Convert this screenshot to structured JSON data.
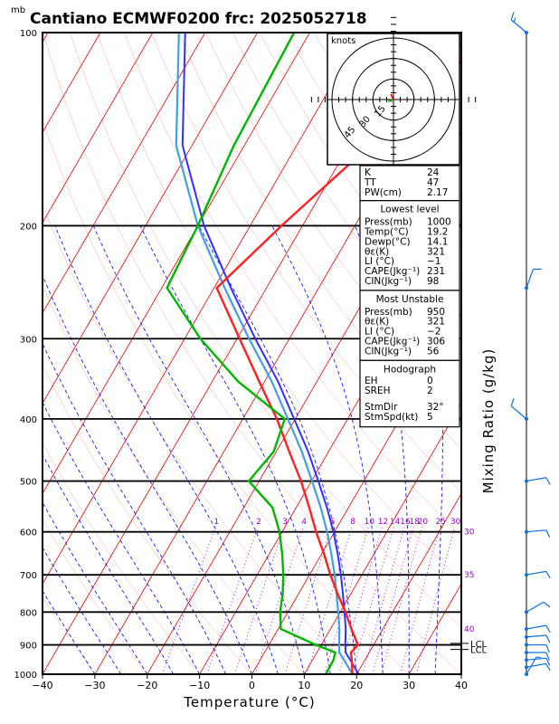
{
  "header": {
    "title": "Cantiano ECMWF0200  frc: 2025052718",
    "unit_label": "mb"
  },
  "chart_data": {
    "type": "skew-t log-p sounding",
    "xlabel": "Temperature (°C)",
    "ylabel_right": "Mixing Ratio  (g/kg)",
    "x_ticks": [
      "−40",
      "−30",
      "−20",
      "−10",
      "0",
      "10",
      "20",
      "30",
      "40"
    ],
    "x_range": [
      -40,
      40
    ],
    "pressure_range": [
      100,
      1000
    ],
    "pressure_labels": [
      "100",
      "200",
      "300",
      "400",
      "500",
      "600",
      "700",
      "800",
      "900",
      "1000"
    ],
    "isotherm_spacing_degC": 10,
    "mixing_ratio_labels": [
      "1",
      "2",
      "3",
      "4",
      "6",
      "8",
      "10",
      "12",
      "14",
      "16",
      "18",
      "20",
      "25",
      "30"
    ],
    "theta_e_labels": [
      "30",
      "35",
      "40"
    ],
    "lcl_labels": [
      "LCL",
      "LCL"
    ],
    "lcl_pressures_mb": [
      895,
      915
    ],
    "temperature_profile": [
      {
        "p": 1000,
        "t": 19.2
      },
      {
        "p": 950,
        "t": 17.5
      },
      {
        "p": 925,
        "t": 16.5
      },
      {
        "p": 900,
        "t": 17.0
      },
      {
        "p": 850,
        "t": 14.0
      },
      {
        "p": 800,
        "t": 11.0
      },
      {
        "p": 750,
        "t": 7.5
      },
      {
        "p": 700,
        "t": 4.0
      },
      {
        "p": 650,
        "t": 0.5
      },
      {
        "p": 600,
        "t": -3.5
      },
      {
        "p": 550,
        "t": -7.5
      },
      {
        "p": 500,
        "t": -12.0
      },
      {
        "p": 450,
        "t": -17.5
      },
      {
        "p": 400,
        "t": -23.5
      },
      {
        "p": 350,
        "t": -31.0
      },
      {
        "p": 300,
        "t": -39.5
      },
      {
        "p": 250,
        "t": -49.5
      },
      {
        "p": 200,
        "t": -44.0
      },
      {
        "p": 150,
        "t": -36.0
      },
      {
        "p": 100,
        "t": -25.0
      }
    ],
    "dewpoint_profile": [
      {
        "p": 1000,
        "t": 14.1
      },
      {
        "p": 950,
        "t": 14.0
      },
      {
        "p": 925,
        "t": 13.5
      },
      {
        "p": 900,
        "t": 9.0
      },
      {
        "p": 850,
        "t": 0.5
      },
      {
        "p": 800,
        "t": -1.5
      },
      {
        "p": 750,
        "t": -3.0
      },
      {
        "p": 700,
        "t": -5.0
      },
      {
        "p": 650,
        "t": -7.5
      },
      {
        "p": 600,
        "t": -10.5
      },
      {
        "p": 550,
        "t": -14.5
      },
      {
        "p": 500,
        "t": -22.0
      },
      {
        "p": 450,
        "t": -20.5
      },
      {
        "p": 400,
        "t": -22.0
      },
      {
        "p": 350,
        "t": -35.0
      },
      {
        "p": 300,
        "t": -47.0
      },
      {
        "p": 250,
        "t": -59.0
      },
      {
        "p": 200,
        "t": -60.0
      },
      {
        "p": 150,
        "t": -62.0
      },
      {
        "p": 100,
        "t": -63.0
      }
    ],
    "parcel_profile": [
      {
        "p": 1000,
        "t": 19.2
      },
      {
        "p": 950,
        "t": 16.0
      },
      {
        "p": 925,
        "t": 14.3
      },
      {
        "p": 900,
        "t": 13.4
      },
      {
        "p": 850,
        "t": 11.7
      },
      {
        "p": 800,
        "t": 9.6
      },
      {
        "p": 750,
        "t": 7.3
      },
      {
        "p": 700,
        "t": 4.8
      },
      {
        "p": 650,
        "t": 1.9
      },
      {
        "p": 600,
        "t": -1.4
      },
      {
        "p": 550,
        "t": -5.3
      },
      {
        "p": 500,
        "t": -9.9
      },
      {
        "p": 450,
        "t": -15.1
      },
      {
        "p": 400,
        "t": -21.4
      },
      {
        "p": 350,
        "t": -28.6
      },
      {
        "p": 300,
        "t": -37.7
      },
      {
        "p": 250,
        "t": -48.0
      },
      {
        "p": 200,
        "t": -60.0
      },
      {
        "p": 150,
        "t": -73.0
      },
      {
        "p": 100,
        "t": -85.0
      }
    ],
    "wind_barbs": [
      {
        "p": 1000,
        "dir": 30,
        "spd": 5
      },
      {
        "p": 975,
        "dir": 80,
        "spd": 10
      },
      {
        "p": 950,
        "dir": 85,
        "spd": 10
      },
      {
        "p": 925,
        "dir": 90,
        "spd": 10
      },
      {
        "p": 900,
        "dir": 90,
        "spd": 10
      },
      {
        "p": 875,
        "dir": 85,
        "spd": 10
      },
      {
        "p": 850,
        "dir": 80,
        "spd": 10
      },
      {
        "p": 800,
        "dir": 60,
        "spd": 10
      },
      {
        "p": 700,
        "dir": 80,
        "spd": 10
      },
      {
        "p": 600,
        "dir": 85,
        "spd": 10
      },
      {
        "p": 500,
        "dir": 80,
        "spd": 10
      },
      {
        "p": 400,
        "dir": 310,
        "spd": 10
      },
      {
        "p": 250,
        "dir": 20,
        "spd": 10
      },
      {
        "p": 100,
        "dir": 310,
        "spd": 15
      }
    ],
    "hodograph": {
      "units": "knots",
      "ring_labels": [
        "15",
        "30",
        "45"
      ],
      "ring_values": [
        15,
        30,
        45
      ]
    }
  },
  "indices": {
    "top": [
      {
        "label": "K",
        "value": "24"
      },
      {
        "label": "TT",
        "value": "47"
      },
      {
        "label": "PW(cm)",
        "value": "2.17"
      }
    ],
    "lowest_title": "Lowest level",
    "lowest": [
      {
        "label": "Press(mb)",
        "value": "1000"
      },
      {
        "label": "Temp(°C)",
        "value": "19.2"
      },
      {
        "label": "Dewp(°C)",
        "value": "14.1"
      },
      {
        "label": "θε(K)",
        "value": "321"
      },
      {
        "label": "LI (°C)",
        "value": "−1"
      },
      {
        "label": "CAPE(Jkg⁻¹)",
        "value": "231"
      },
      {
        "label": "CIN(Jkg⁻¹)",
        "value": "98"
      }
    ],
    "unstable_title": "Most Unstable",
    "unstable": [
      {
        "label": "Press(mb)",
        "value": "950"
      },
      {
        "label": "θε(K)",
        "value": "321"
      },
      {
        "label": "LI (°C)",
        "value": "−2"
      },
      {
        "label": "CAPE(Jkg⁻¹)",
        "value": "306"
      },
      {
        "label": "CIN(Jkg⁻¹)",
        "value": "56"
      }
    ],
    "hodo_title": "Hodograph",
    "hodo": [
      {
        "label": "EH",
        "value": "0"
      },
      {
        "label": "SREH",
        "value": "2"
      },
      {
        "label": "StmDir",
        "value": "32°"
      },
      {
        "label": "StmSpd(kt)",
        "value": "5"
      }
    ]
  },
  "colors": {
    "isotherm": "#e00000",
    "dry_adiabat": "#ff0000",
    "moist_adiabat": "#0000ff",
    "mixing_ratio": "#b000d0",
    "temperature": "#ff2020",
    "dewpoint": "#00b800",
    "parcel_1": "#3030ff",
    "parcel_2": "#40a0e0",
    "grid": "#000000",
    "barb": "#1070e0"
  }
}
